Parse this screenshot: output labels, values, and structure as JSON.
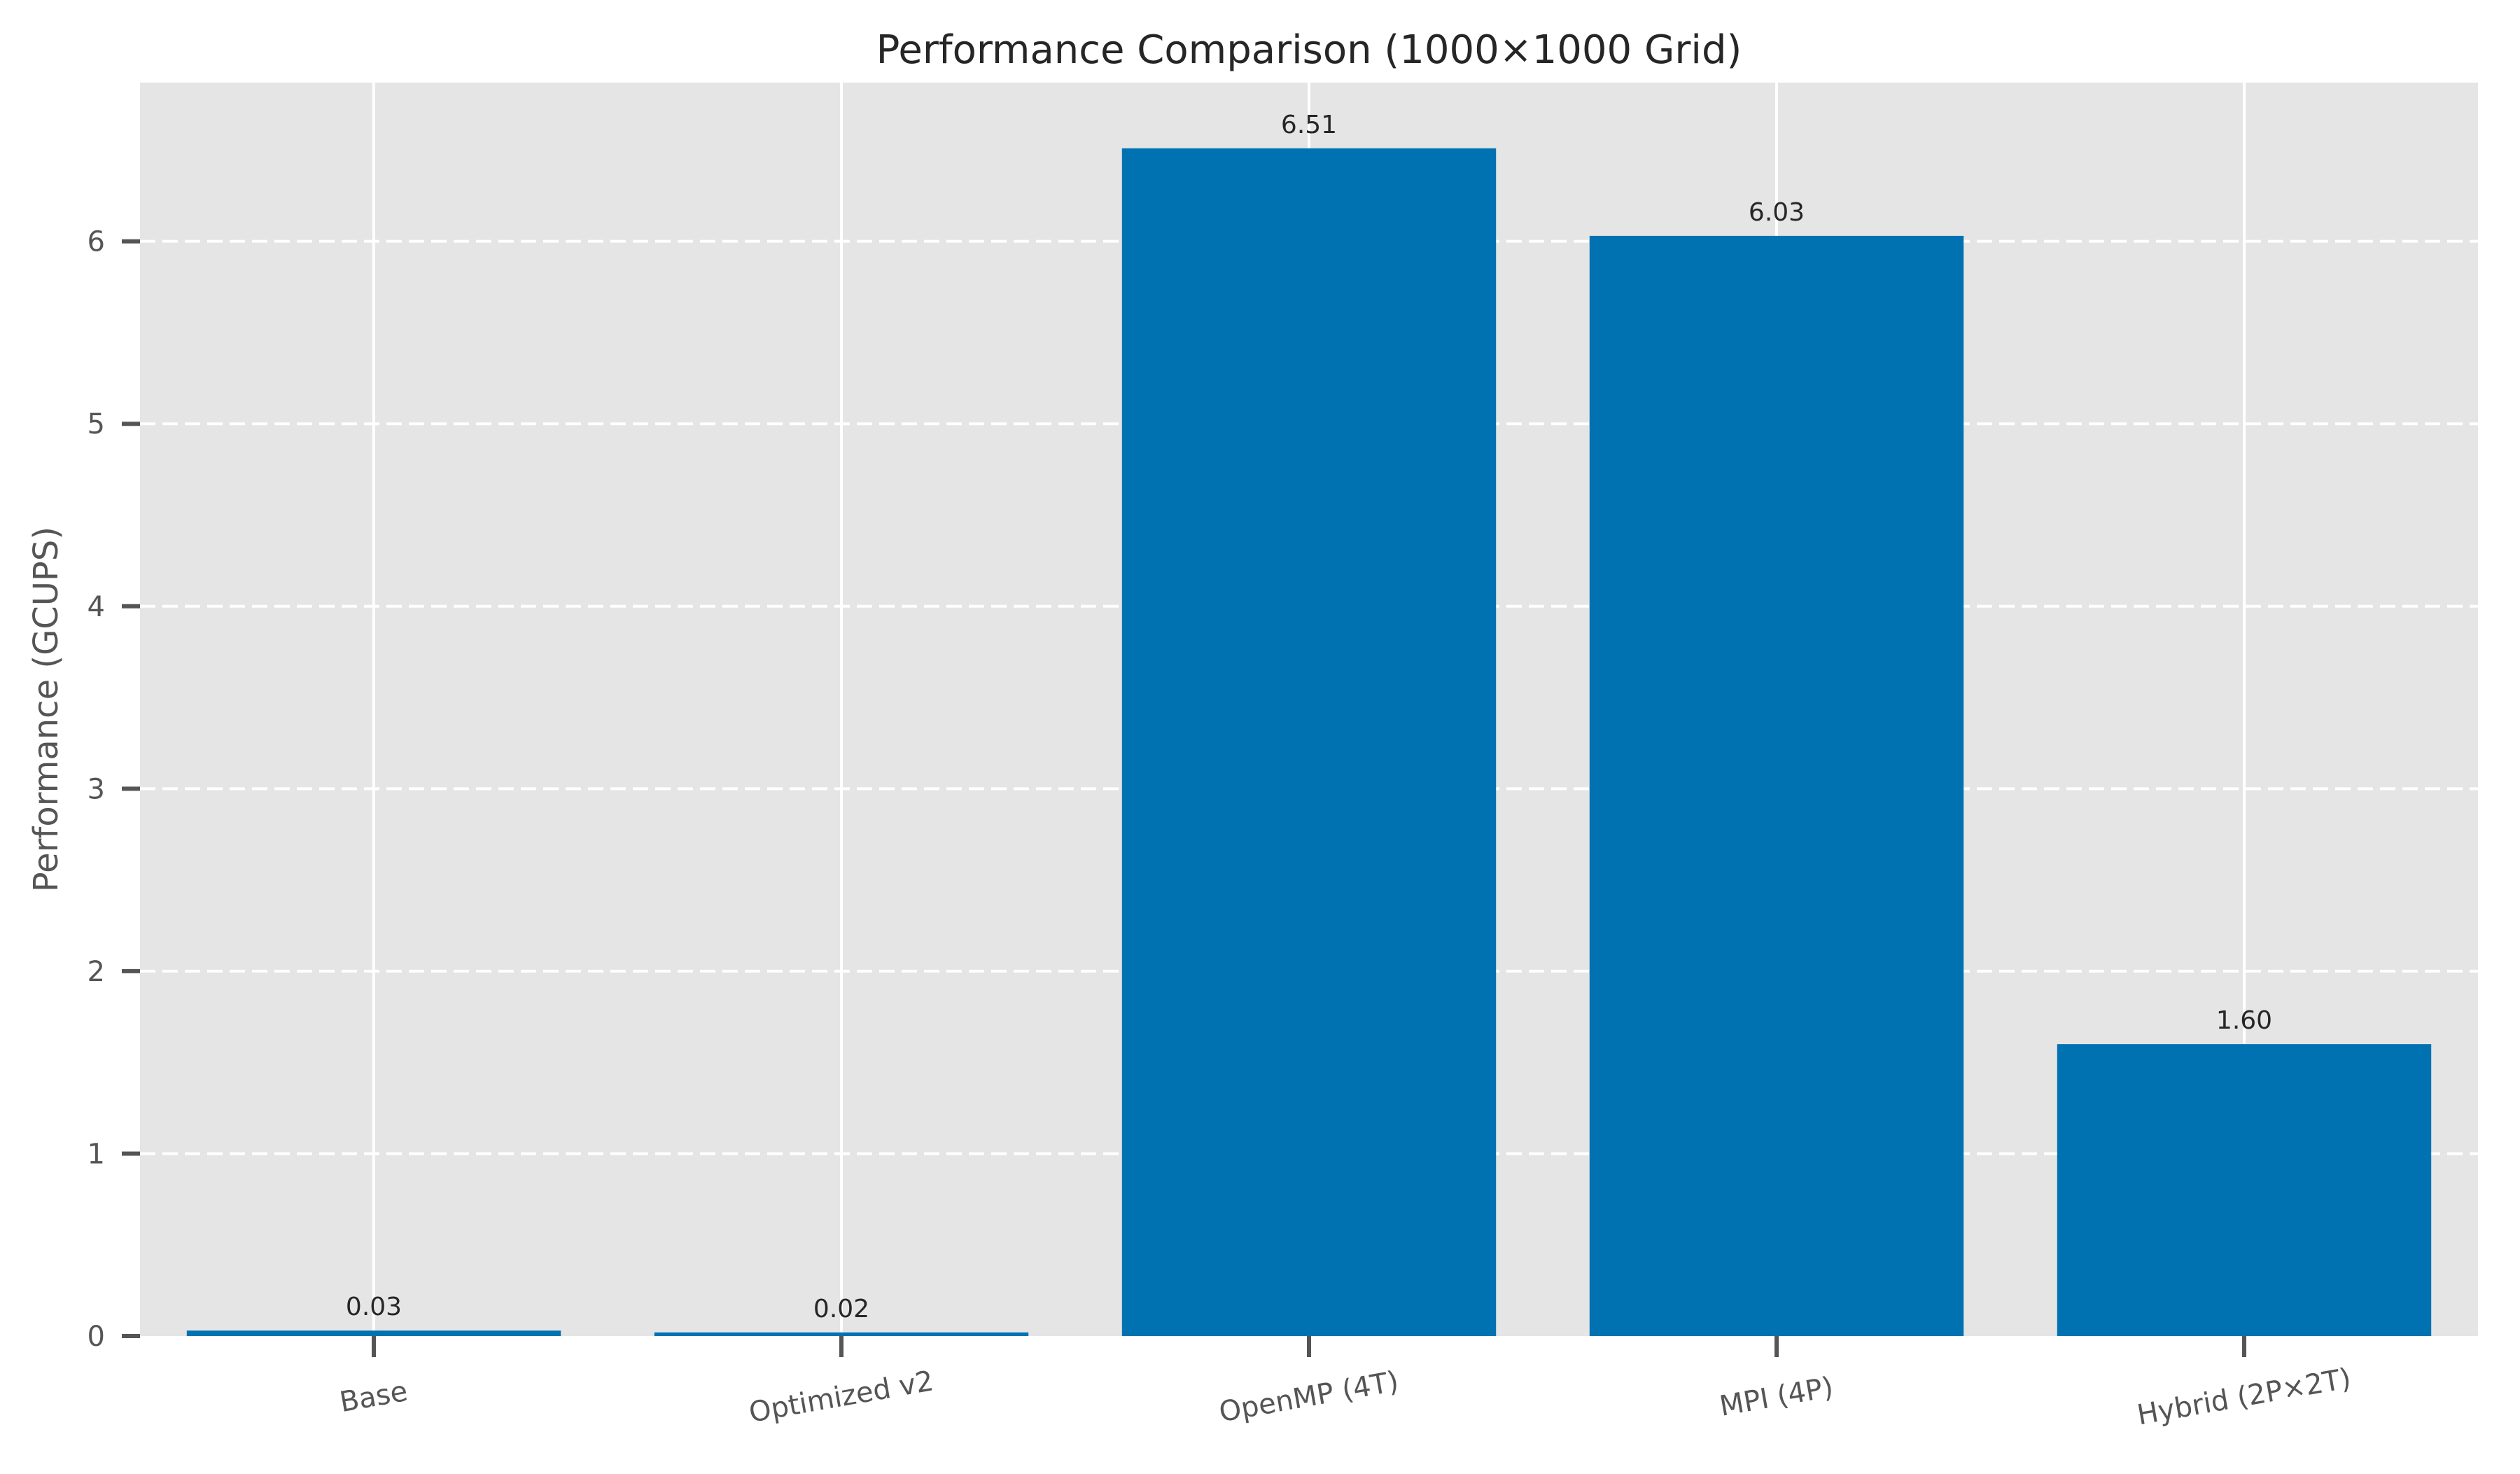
{
  "chart_data": {
    "type": "bar",
    "title": "Performance Comparison (1000×1000 Grid)",
    "xlabel": "",
    "ylabel": "Performance (GCUPS)",
    "categories": [
      "Base",
      "Optimized v2",
      "OpenMP (4T)",
      "MPI (4P)",
      "Hybrid (2P×2T)"
    ],
    "values": [
      0.03,
      0.02,
      6.51,
      6.03,
      1.6
    ],
    "value_labels": [
      "0.03",
      "0.02",
      "6.51",
      "6.03",
      "1.60"
    ],
    "ylim": [
      0,
      6.87
    ],
    "yticks": [
      0,
      1,
      2,
      3,
      4,
      5,
      6
    ],
    "grid": true,
    "grid_style": "y dashed, x solid",
    "xtick_rotation_deg": -10,
    "colors": {
      "bar": "#0072B2",
      "background": "#E5E5E5",
      "grid": "#FFFFFF",
      "axis_text": "#555555"
    }
  }
}
